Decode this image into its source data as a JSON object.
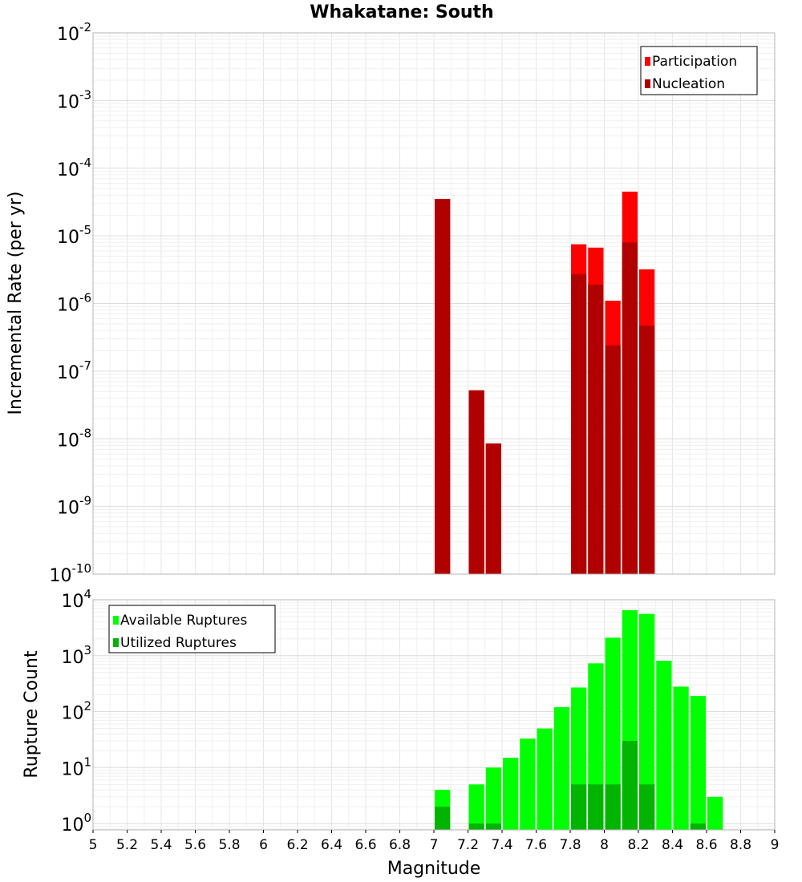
{
  "chart_data": [
    {
      "type": "bar",
      "title": "Whakatane: South",
      "ylabel": "Incremental Rate (per yr)",
      "xlabel": "",
      "yscale": "log",
      "ylim": [
        1e-10,
        0.01
      ],
      "xlim": [
        5,
        9
      ],
      "bin_width": 0.1,
      "grid": true,
      "legend_position": "top-right",
      "y_tick_labels": [
        {
          "base": "10",
          "exp": "-2"
        },
        {
          "base": "10",
          "exp": "-3"
        },
        {
          "base": "10",
          "exp": "-4"
        },
        {
          "base": "10",
          "exp": "-5"
        },
        {
          "base": "10",
          "exp": "-6"
        },
        {
          "base": "10",
          "exp": "-7"
        },
        {
          "base": "10",
          "exp": "-8"
        },
        {
          "base": "10",
          "exp": "-9"
        },
        {
          "base": "10",
          "exp": "-10"
        }
      ],
      "x": [
        7.05,
        7.25,
        7.35,
        7.85,
        7.95,
        8.05,
        8.15,
        8.25
      ],
      "series": [
        {
          "name": "Participation",
          "color": "#ff0000",
          "values": [
            3.5e-05,
            5.2e-08,
            8.5e-09,
            7.5e-06,
            6.7e-06,
            1.1e-06,
            4.5e-05,
            3.2e-06
          ]
        },
        {
          "name": "Nucleation",
          "color": "#b00000",
          "values": [
            3.5e-05,
            5.2e-08,
            8.5e-09,
            2.7e-06,
            1.9e-06,
            2.4e-07,
            8e-06,
            4.7e-07
          ]
        }
      ]
    },
    {
      "type": "bar",
      "title": "",
      "ylabel": "Rupture Count",
      "xlabel": "Magnitude",
      "yscale": "log",
      "ylim": [
        0.77,
        10000
      ],
      "xlim": [
        5,
        9
      ],
      "bin_width": 0.1,
      "grid": true,
      "legend_position": "top-left",
      "y_tick_labels": [
        {
          "base": "10",
          "exp": "4"
        },
        {
          "base": "10",
          "exp": "3"
        },
        {
          "base": "10",
          "exp": "2"
        },
        {
          "base": "10",
          "exp": "1"
        },
        {
          "base": "10",
          "exp": "0"
        }
      ],
      "x_tick_labels": [
        "5",
        "5.2",
        "5.4",
        "5.6",
        "5.8",
        "6",
        "6.2",
        "6.4",
        "6.6",
        "6.8",
        "7",
        "7.2",
        "7.4",
        "7.6",
        "7.8",
        "8",
        "8.2",
        "8.4",
        "8.6",
        "8.8",
        "9"
      ],
      "x": [
        7.05,
        7.25,
        7.35,
        7.45,
        7.55,
        7.65,
        7.75,
        7.85,
        7.95,
        8.05,
        8.15,
        8.25,
        8.35,
        8.45,
        8.55,
        8.65
      ],
      "series": [
        {
          "name": "Available Ruptures",
          "color": "#00ff00",
          "values": [
            4,
            5,
            10,
            15,
            33,
            50,
            120,
            270,
            730,
            2100,
            6500,
            5600,
            810,
            280,
            190,
            3
          ]
        },
        {
          "name": "Utilized Ruptures",
          "color": "#00b400",
          "values": [
            2,
            1,
            1,
            0,
            0,
            0,
            0,
            5,
            5,
            5,
            30,
            5,
            0,
            0,
            1,
            0
          ]
        }
      ]
    }
  ]
}
